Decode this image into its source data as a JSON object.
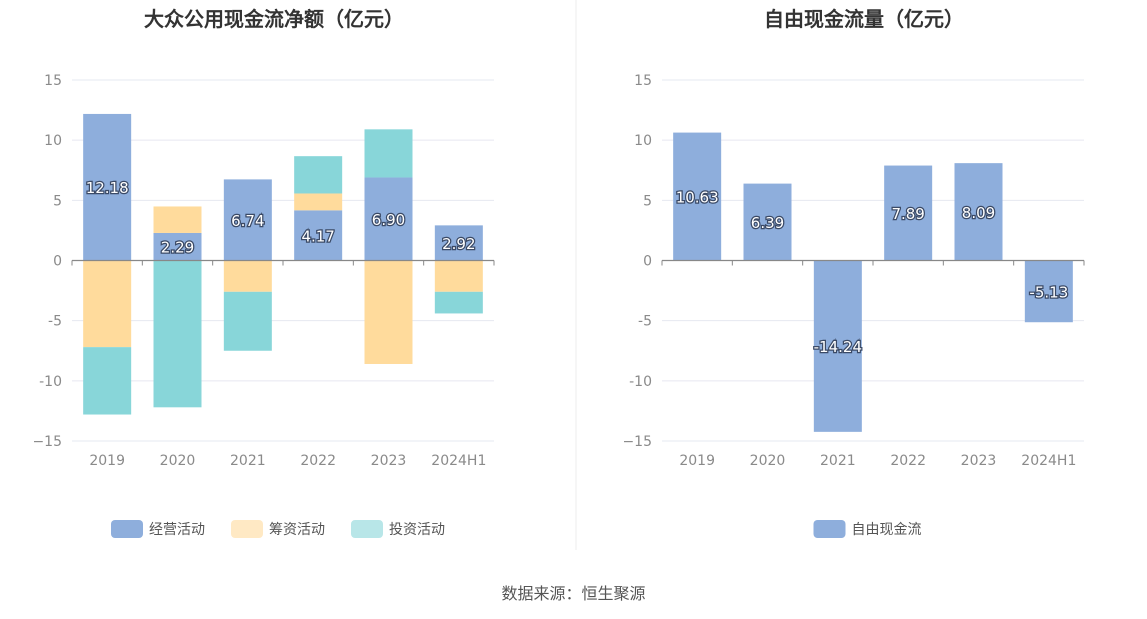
{
  "colors": {
    "operating": "#8eaedc",
    "financing": "#ffdb9c",
    "investing": "#88d6d9",
    "fcf": "#8eaedc",
    "grid": "#e6e8f0",
    "axis": "#888888"
  },
  "chart_data": [
    {
      "type": "bar",
      "stacked": true,
      "title": "大众公用现金流净额（亿元）",
      "categories": [
        "2019",
        "2020",
        "2021",
        "2022",
        "2023",
        "2024H1"
      ],
      "ylim": [
        -15,
        15
      ],
      "yticks": [
        15,
        10,
        5,
        0,
        -5,
        -10,
        -15
      ],
      "ytick_labels": [
        "15",
        "10",
        "5",
        "0",
        "-5",
        "-10",
        "−15"
      ],
      "grid": true,
      "legend_position": "bottom",
      "series": [
        {
          "name": "经营活动",
          "color_key": "operating",
          "values": [
            12.18,
            2.29,
            6.74,
            4.17,
            6.9,
            2.92
          ],
          "labels": [
            "12.18",
            "2.29",
            "6.74",
            "4.17",
            "6.90",
            "2.92"
          ]
        },
        {
          "name": "筹资活动",
          "color_key": "financing",
          "values": [
            -7.2,
            2.2,
            -2.6,
            1.4,
            -8.6,
            -2.6
          ]
        },
        {
          "name": "投资活动",
          "color_key": "investing",
          "values": [
            -5.6,
            -12.2,
            -4.9,
            3.1,
            4.0,
            -1.8
          ]
        }
      ]
    },
    {
      "type": "bar",
      "title": "自由现金流量（亿元）",
      "categories": [
        "2019",
        "2020",
        "2021",
        "2022",
        "2023",
        "2024H1"
      ],
      "ylim": [
        -15,
        15
      ],
      "yticks": [
        15,
        10,
        5,
        0,
        -5,
        -10,
        -15
      ],
      "ytick_labels": [
        "15",
        "10",
        "5",
        "0",
        "-5",
        "-10",
        "−15"
      ],
      "grid": true,
      "legend_position": "bottom",
      "series": [
        {
          "name": "自由现金流",
          "color_key": "fcf",
          "values": [
            10.63,
            6.39,
            -14.24,
            7.89,
            8.09,
            -5.13
          ],
          "labels": [
            "10.63",
            "6.39",
            "-14.24",
            "7.89",
            "8.09",
            "-5.13"
          ]
        }
      ]
    }
  ],
  "source": "数据来源：恒生聚源"
}
